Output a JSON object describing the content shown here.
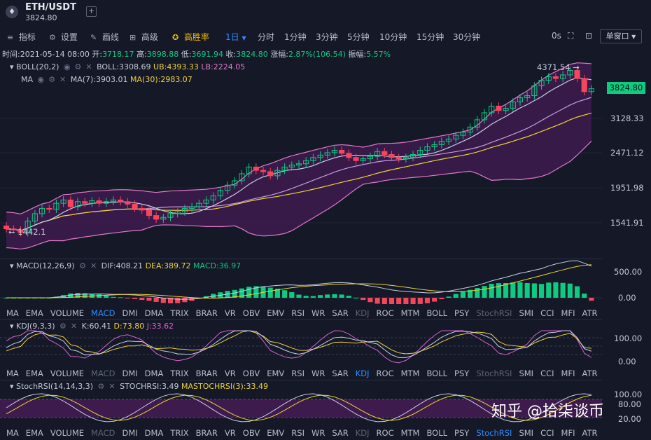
{
  "header": {
    "pair": "ETH/USDT",
    "price": "3824.80",
    "logo_glyph": "♦",
    "add_glyph": "+"
  },
  "toolbar": {
    "items": [
      {
        "icon": "≡",
        "label": "指标"
      },
      {
        "icon": "⚙",
        "label": "设置"
      },
      {
        "icon": "✎",
        "label": "画线"
      },
      {
        "icon": "⊞",
        "label": "高级"
      },
      {
        "icon": "✪",
        "label": "高胜率"
      }
    ],
    "intervals": [
      "1日",
      "分时",
      "1分钟",
      "3分钟",
      "5分钟",
      "10分钟",
      "15分钟",
      "30分钟"
    ],
    "selected_interval": "1日",
    "countdown": "0s",
    "window_mode": "单窗口"
  },
  "info_bar": {
    "time_label": "时间:",
    "time": "2021-05-14 08:00",
    "open_label": "开:",
    "open": "3718.17",
    "high_label": "高:",
    "high": "3898.88",
    "low_label": "低:",
    "low": "3691.94",
    "close_label": "收:",
    "close": "3824.80",
    "change_label": "涨幅:",
    "change": "2.87%(106.54)",
    "amplitude_label": "振幅:",
    "amplitude": "5.57%"
  },
  "main_indicators": {
    "boll": {
      "name": "BOLL(20,2)",
      "boll": "BOLL:3308.69",
      "ub": "UB:4393.33",
      "lb": "LB:2224.05"
    },
    "ma": {
      "name": "MA",
      "ma7": "MA(7):3903.01",
      "ma30": "MA(30):2983.07"
    }
  },
  "price_axis": [
    "3128.33",
    "2471.12",
    "1951.98",
    "1541.91"
  ],
  "current_price_tag": "3824.80",
  "annotations": {
    "high": "4371.54 →",
    "low": "← 1442.1"
  },
  "macd": {
    "name": "MACD(12,26,9)",
    "dif": "DIF:408.21",
    "dea": "DEA:389.72",
    "macd": "MACD:36.97",
    "axis": [
      "500.00",
      "0.00"
    ]
  },
  "kdj": {
    "name": "KDJ(9,3,3)",
    "k": "K:60.41",
    "d": "D:73.80",
    "j": "J:33.62",
    "axis": [
      "100.00",
      "0.00"
    ]
  },
  "stochrsi": {
    "name": "StochRSI(14,14,3,3)",
    "stoch": "STOCHRSI:3.49",
    "mastoch": "MASTOCHRSI(3):33.49",
    "axis": [
      "100.00",
      "80.00",
      "20.00"
    ]
  },
  "indicator_tabs": [
    "MA",
    "EMA",
    "VOLUME",
    "MACD",
    "DMI",
    "DMA",
    "TRIX",
    "BRAR",
    "VR",
    "OBV",
    "EMV",
    "RSI",
    "WR",
    "SAR",
    "KDJ",
    "ROC",
    "MTM",
    "BOLL",
    "PSY",
    "StochRSI",
    "SMI",
    "CCI",
    "MFI",
    "ATR"
  ],
  "watermark": "知乎 @拾柒谈币",
  "chart_data": {
    "type": "candlestick",
    "interval": "1日",
    "y_axis_ticks": [
      3128.33,
      2471.12,
      1951.98,
      1541.91
    ],
    "last_candle": {
      "time": "2021-05-14 08:00",
      "open": 3718.17,
      "high": 3898.88,
      "low": 3691.94,
      "close": 3824.8
    },
    "marked_high": 4371.54,
    "marked_low": 1442.1,
    "candles_close_estimate": [
      1480,
      1470,
      1442,
      1560,
      1640,
      1700,
      1690,
      1760,
      1800,
      1720,
      1780,
      1760,
      1790,
      1760,
      1780,
      1800,
      1780,
      1750,
      1700,
      1680,
      1620,
      1580,
      1600,
      1640,
      1660,
      1700,
      1720,
      1760,
      1800,
      1850,
      1920,
      1990,
      2050,
      2150,
      2250,
      2200,
      2180,
      2120,
      2200,
      2250,
      2280,
      2300,
      2350,
      2400,
      2440,
      2480,
      2520,
      2470,
      2400,
      2350,
      2380,
      2420,
      2500,
      2450,
      2400,
      2380,
      2400,
      2450,
      2520,
      2580,
      2620,
      2680,
      2720,
      2790,
      2850,
      2950,
      3100,
      3250,
      3400,
      3300,
      3350,
      3500,
      3600,
      3650,
      3900,
      4050,
      4150,
      4100,
      4200,
      4330,
      4100,
      3750,
      3824.8
    ],
    "colors": {
      "up": "#0ecb81",
      "down": "#f6465d",
      "ma7": "#c8d0e8",
      "ma30": "#f0d23c",
      "boll_mid": "#c79ce0",
      "boll_band": "#e07bc8",
      "fill": "#3d1b4d",
      "accent": "#2f8cff"
    }
  }
}
